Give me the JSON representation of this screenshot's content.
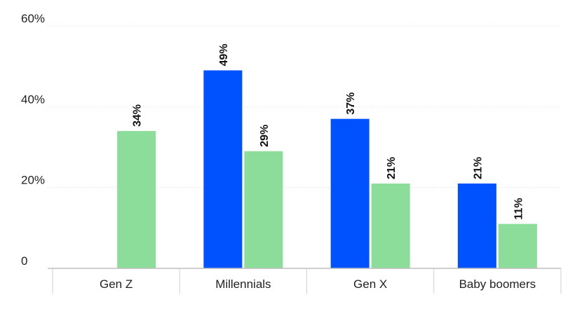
{
  "chart_data": {
    "type": "bar",
    "title": "",
    "xlabel": "",
    "ylabel": "",
    "categories": [
      "Gen Z",
      "Millennials",
      "Gen X",
      "Baby boomers"
    ],
    "series": [
      {
        "values": [
          null,
          49,
          37,
          21
        ],
        "labels": [
          "",
          "49%",
          "37%",
          "21%"
        ],
        "color": "#0052ff"
      },
      {
        "values": [
          34,
          29,
          21,
          11
        ],
        "labels": [
          "34%",
          "29%",
          "21%",
          "11%"
        ],
        "color": "#8cdd9a"
      }
    ],
    "ylim": [
      0,
      60
    ],
    "yticks": [
      0,
      20,
      40,
      60
    ],
    "ytick_labels": [
      "0",
      "20%",
      "40%",
      "60%"
    ],
    "grid": true,
    "legend": "none"
  }
}
